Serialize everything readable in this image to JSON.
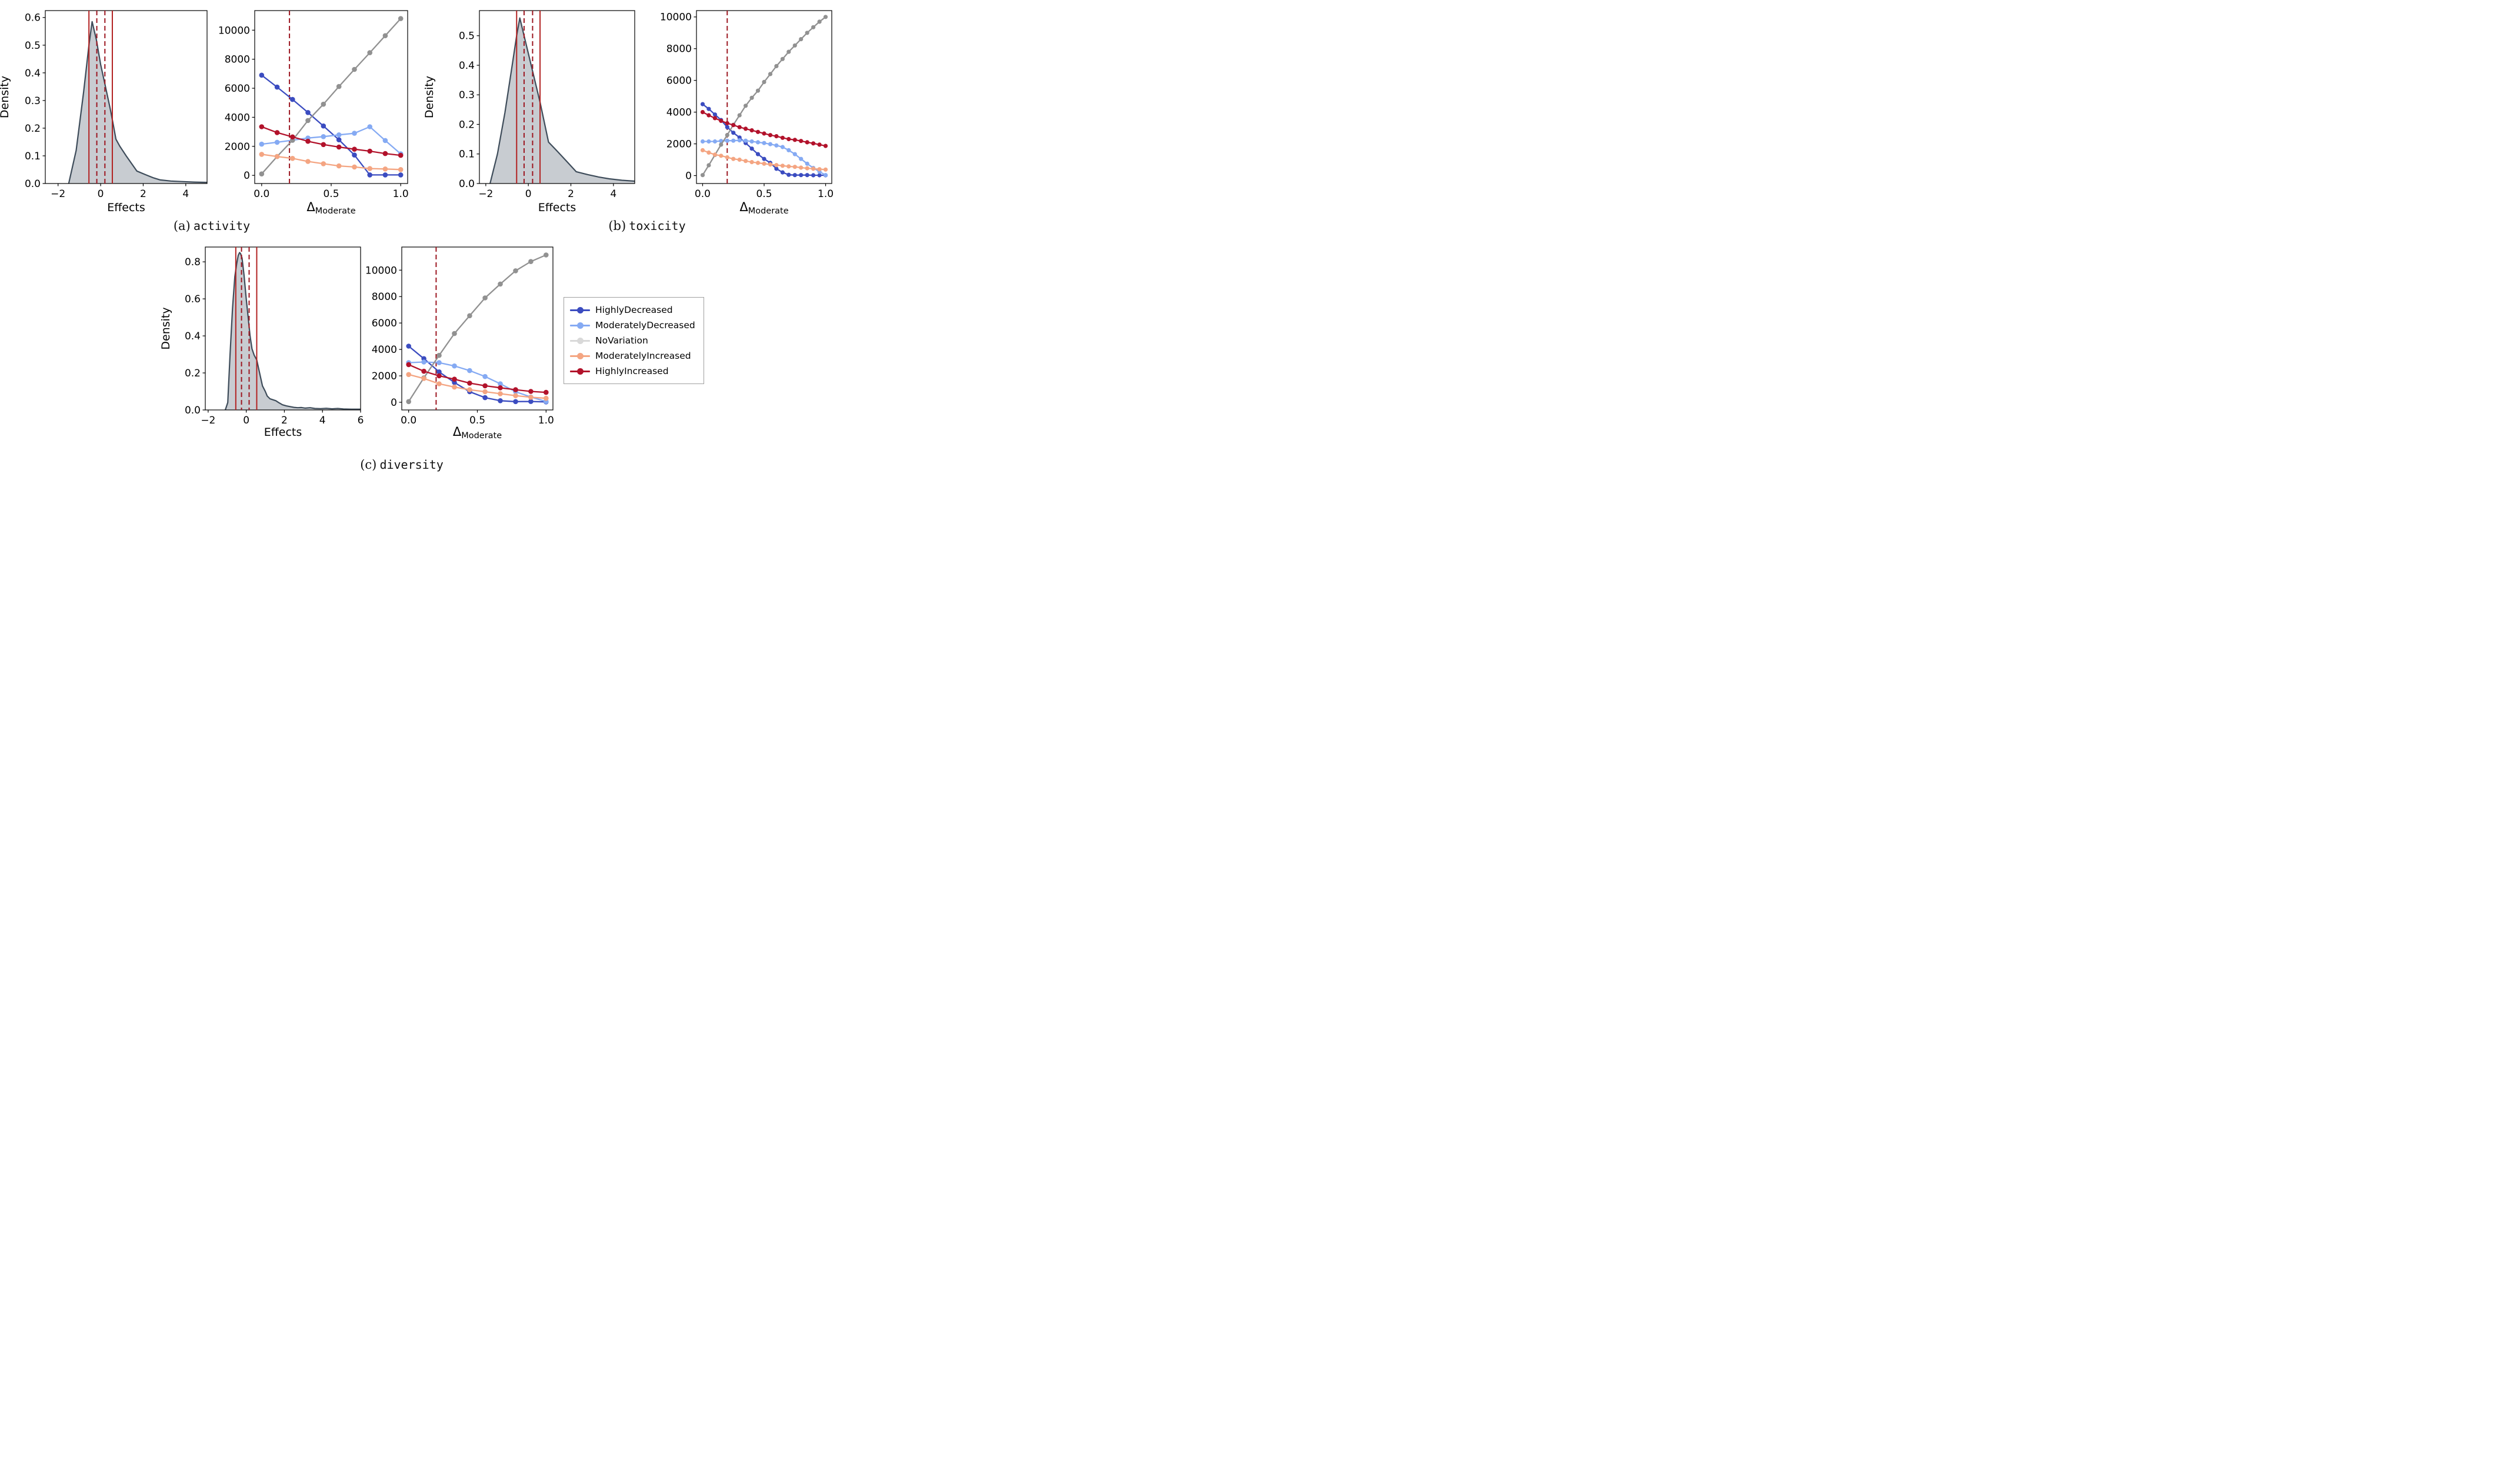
{
  "colors": {
    "background": "#ffffff",
    "density_fill": "#c8ccd1",
    "density_line": "#3e4c5a",
    "vline_solid": "#b22222",
    "vline_dashed": "#9c1620",
    "axis": "#000000"
  },
  "captions": [
    {
      "prefix": "(a)",
      "label": "activity"
    },
    {
      "prefix": "(b)",
      "label": "toxicity"
    },
    {
      "prefix": "(c)",
      "label": "diversity"
    }
  ],
  "legend": {
    "items": [
      {
        "label": "HighlyDecreased",
        "color": "#3b4cc0"
      },
      {
        "label": "ModeratelyDecreased",
        "color": "#85aaf3"
      },
      {
        "label": "NoVariation",
        "color": "#d9d9d9"
      },
      {
        "label": "ModeratelyIncreased",
        "color": "#f4a582"
      },
      {
        "label": "HighlyIncreased",
        "color": "#b2122b"
      }
    ]
  },
  "chart_data": [
    {
      "id": "a-density",
      "panel": "activity",
      "type": "area",
      "xlabel": {
        "text": "Effects"
      },
      "ylabel": "Density",
      "xlim": [
        -2.6,
        5.0
      ],
      "ylim": [
        0,
        0.625
      ],
      "xticks": {
        "values": [
          -2,
          0,
          2,
          4
        ],
        "labels": [
          "−2",
          "0",
          "2",
          "4"
        ]
      },
      "yticks": {
        "values": [
          0,
          0.1,
          0.2,
          0.3,
          0.4,
          0.5,
          0.6
        ],
        "labels": [
          "0.0",
          "0.1",
          "0.2",
          "0.3",
          "0.4",
          "0.5",
          "0.6"
        ]
      },
      "vlines": [
        {
          "x": -0.55,
          "style": "solid"
        },
        {
          "x": -0.18,
          "style": "dashed"
        },
        {
          "x": 0.2,
          "style": "dashed"
        },
        {
          "x": 0.55,
          "style": "solid"
        }
      ],
      "area": {
        "x": [
          -1.5,
          -1.15,
          -0.8,
          -0.55,
          -0.4,
          -0.2,
          0.0,
          0.2,
          0.45,
          0.6,
          0.72,
          0.9,
          1.2,
          1.7,
          2.1,
          2.5,
          2.8,
          3.3,
          3.8,
          4.4,
          5.0
        ],
        "y": [
          0,
          0.12,
          0.33,
          0.5,
          0.585,
          0.52,
          0.43,
          0.36,
          0.27,
          0.21,
          0.16,
          0.135,
          0.1,
          0.045,
          0.032,
          0.02,
          0.013,
          0.009,
          0.007,
          0.005,
          0.004
        ]
      }
    },
    {
      "id": "a-lines",
      "panel": "activity",
      "type": "line",
      "xlabel": {
        "symbol": "Δ",
        "subscript": "Moderate"
      },
      "ylabel": null,
      "xlim": [
        -0.05,
        1.05
      ],
      "ylim": [
        -560,
        11350
      ],
      "xticks": {
        "values": [
          0.0,
          0.5,
          1.0
        ],
        "labels": [
          "0.0",
          "0.5",
          "1.0"
        ]
      },
      "yticks": {
        "values": [
          0,
          2000,
          4000,
          6000,
          8000,
          10000
        ],
        "labels": [
          "0",
          "2000",
          "4000",
          "6000",
          "8000",
          "10000"
        ]
      },
      "vlines": [
        {
          "x": 0.2,
          "style": "dashed"
        }
      ],
      "x": [
        0,
        0.111,
        0.222,
        0.333,
        0.444,
        0.556,
        0.667,
        0.778,
        0.889,
        1.0
      ],
      "series": [
        {
          "name": "HighlyDecreased",
          "color": "#3b4cc0",
          "values": [
            6900,
            6080,
            5230,
            4330,
            3400,
            2450,
            1400,
            30,
            30,
            30
          ]
        },
        {
          "name": "ModeratelyDecreased",
          "color": "#85aaf3",
          "values": [
            2150,
            2280,
            2420,
            2570,
            2670,
            2790,
            2900,
            3350,
            2400,
            1480
          ]
        },
        {
          "name": "NoVariation",
          "color": "#919191",
          "values": [
            100,
            1300,
            2420,
            3780,
            4900,
            6120,
            7300,
            8450,
            9620,
            10800
          ]
        },
        {
          "name": "ModeratelyIncreased",
          "color": "#f4a582",
          "values": [
            1450,
            1300,
            1170,
            960,
            800,
            650,
            580,
            470,
            440,
            400
          ]
        },
        {
          "name": "HighlyIncreased",
          "color": "#b2122b",
          "values": [
            3350,
            2950,
            2650,
            2350,
            2120,
            1950,
            1800,
            1670,
            1500,
            1380
          ]
        }
      ]
    },
    {
      "id": "b-density",
      "panel": "toxicity",
      "type": "area",
      "xlabel": {
        "text": "Effects"
      },
      "ylabel": "Density",
      "xlim": [
        -2.3,
        5.0
      ],
      "ylim": [
        0,
        0.585
      ],
      "xticks": {
        "values": [
          -2,
          0,
          2,
          4
        ],
        "labels": [
          "−2",
          "0",
          "2",
          "4"
        ]
      },
      "yticks": {
        "values": [
          0,
          0.1,
          0.2,
          0.3,
          0.4,
          0.5
        ],
        "labels": [
          "0.0",
          "0.1",
          "0.2",
          "0.3",
          "0.4",
          "0.5"
        ]
      },
      "vlines": [
        {
          "x": -0.55,
          "style": "solid"
        },
        {
          "x": -0.2,
          "style": "dashed"
        },
        {
          "x": 0.2,
          "style": "dashed"
        },
        {
          "x": 0.55,
          "style": "solid"
        }
      ],
      "area": {
        "x": [
          -1.8,
          -1.45,
          -1.1,
          -0.8,
          -0.55,
          -0.4,
          -0.2,
          0.0,
          0.2,
          0.55,
          0.95,
          1.35,
          1.8,
          2.25,
          2.8,
          3.3,
          3.8,
          4.4,
          5.0
        ],
        "y": [
          0,
          0.1,
          0.24,
          0.38,
          0.5,
          0.56,
          0.5,
          0.44,
          0.38,
          0.275,
          0.14,
          0.11,
          0.075,
          0.04,
          0.03,
          0.022,
          0.016,
          0.011,
          0.008
        ]
      }
    },
    {
      "id": "b-lines",
      "panel": "toxicity",
      "type": "line",
      "xlabel": {
        "symbol": "Δ",
        "subscript": "Moderate"
      },
      "ylabel": null,
      "xlim": [
        -0.05,
        1.05
      ],
      "ylim": [
        -500,
        10400
      ],
      "xticks": {
        "values": [
          0.0,
          0.5,
          1.0
        ],
        "labels": [
          "0.0",
          "0.5",
          "1.0"
        ]
      },
      "yticks": {
        "values": [
          0,
          2000,
          4000,
          6000,
          8000,
          10000
        ],
        "labels": [
          "0",
          "2000",
          "4000",
          "6000",
          "8000",
          "10000"
        ]
      },
      "vlines": [
        {
          "x": 0.2,
          "style": "dashed"
        }
      ],
      "x": [
        0,
        0.05,
        0.1,
        0.15,
        0.2,
        0.25,
        0.3,
        0.35,
        0.4,
        0.45,
        0.5,
        0.55,
        0.6,
        0.65,
        0.7,
        0.75,
        0.8,
        0.85,
        0.9,
        0.95,
        1.0
      ],
      "series": [
        {
          "name": "HighlyDecreased",
          "color": "#3b4cc0",
          "values": [
            4500,
            4200,
            3850,
            3500,
            3050,
            2700,
            2400,
            2050,
            1700,
            1350,
            1050,
            800,
            430,
            200,
            50,
            30,
            30,
            30,
            20,
            20,
            20
          ]
        },
        {
          "name": "ModeratelyDecreased",
          "color": "#85aaf3",
          "values": [
            2150,
            2150,
            2150,
            2180,
            2200,
            2200,
            2220,
            2200,
            2150,
            2100,
            2050,
            1980,
            1900,
            1800,
            1600,
            1350,
            1050,
            750,
            480,
            250,
            30
          ]
        },
        {
          "name": "NoVariation",
          "color": "#919191",
          "values": [
            30,
            650,
            1300,
            1950,
            2550,
            3200,
            3800,
            4400,
            4900,
            5350,
            5900,
            6400,
            6900,
            7350,
            7800,
            8200,
            8600,
            9000,
            9350,
            9700,
            10000
          ]
        },
        {
          "name": "ModeratelyIncreased",
          "color": "#f4a582",
          "values": [
            1600,
            1450,
            1320,
            1250,
            1150,
            1050,
            1000,
            920,
            850,
            800,
            750,
            700,
            660,
            620,
            580,
            550,
            500,
            460,
            430,
            400,
            380
          ]
        },
        {
          "name": "HighlyIncreased",
          "color": "#b2122b",
          "values": [
            4000,
            3800,
            3620,
            3450,
            3300,
            3180,
            3050,
            2950,
            2850,
            2750,
            2650,
            2550,
            2480,
            2380,
            2300,
            2250,
            2180,
            2100,
            2030,
            1950,
            1870
          ]
        }
      ]
    },
    {
      "id": "c-density",
      "panel": "diversity",
      "type": "area",
      "xlabel": {
        "text": "Effects"
      },
      "ylabel": "Density",
      "xlim": [
        -2.15,
        6.0
      ],
      "ylim": [
        0,
        0.88
      ],
      "xticks": {
        "values": [
          -2,
          0,
          2,
          4,
          6
        ],
        "labels": [
          "−2",
          "0",
          "2",
          "4",
          "6"
        ]
      },
      "yticks": {
        "values": [
          0,
          0.2,
          0.4,
          0.6,
          0.8
        ],
        "labels": [
          "0.0",
          "0.2",
          "0.4",
          "0.6",
          "0.8"
        ]
      },
      "vlines": [
        {
          "x": -0.55,
          "style": "solid"
        },
        {
          "x": -0.25,
          "style": "dashed"
        },
        {
          "x": 0.15,
          "style": "dashed"
        },
        {
          "x": 0.55,
          "style": "solid"
        }
      ],
      "area": {
        "x": [
          -1.1,
          -0.97,
          -0.85,
          -0.72,
          -0.6,
          -0.5,
          -0.42,
          -0.35,
          -0.3,
          -0.22,
          -0.12,
          0.0,
          0.1,
          0.2,
          0.3,
          0.42,
          0.55,
          0.7,
          0.85,
          1.0,
          1.1,
          1.25,
          1.4,
          1.55,
          1.7,
          1.9,
          2.1,
          2.3,
          2.5,
          2.7,
          2.9,
          3.1,
          3.35,
          3.6,
          3.9,
          4.2,
          4.5,
          4.8,
          5.1,
          5.5,
          6.0
        ],
        "y": [
          0,
          0.04,
          0.3,
          0.55,
          0.72,
          0.79,
          0.835,
          0.85,
          0.845,
          0.82,
          0.73,
          0.6,
          0.5,
          0.4,
          0.33,
          0.295,
          0.27,
          0.2,
          0.13,
          0.1,
          0.075,
          0.06,
          0.055,
          0.05,
          0.04,
          0.028,
          0.022,
          0.018,
          0.014,
          0.012,
          0.013,
          0.01,
          0.012,
          0.008,
          0.007,
          0.009,
          0.006,
          0.008,
          0.005,
          0.004,
          0.004
        ]
      }
    },
    {
      "id": "c-lines",
      "panel": "diversity",
      "type": "line",
      "xlabel": {
        "symbol": "Δ",
        "subscript": "Moderate"
      },
      "ylabel": null,
      "xlim": [
        -0.05,
        1.05
      ],
      "ylim": [
        -580,
        11750
      ],
      "xticks": {
        "values": [
          0.0,
          0.5,
          1.0
        ],
        "labels": [
          "0.0",
          "0.5",
          "1.0"
        ]
      },
      "yticks": {
        "values": [
          0,
          2000,
          4000,
          6000,
          8000,
          10000
        ],
        "labels": [
          "0",
          "2000",
          "4000",
          "6000",
          "8000",
          "10000"
        ]
      },
      "vlines": [
        {
          "x": 0.2,
          "style": "dashed"
        }
      ],
      "x": [
        0,
        0.111,
        0.222,
        0.333,
        0.444,
        0.556,
        0.667,
        0.778,
        0.889,
        1.0
      ],
      "series": [
        {
          "name": "HighlyDecreased",
          "color": "#3b4cc0",
          "values": [
            4250,
            3300,
            2300,
            1500,
            800,
            350,
            120,
            50,
            60,
            30
          ]
        },
        {
          "name": "ModeratelyDecreased",
          "color": "#85aaf3",
          "values": [
            3000,
            3050,
            3000,
            2750,
            2400,
            1950,
            1400,
            800,
            400,
            60
          ]
        },
        {
          "name": "NoVariation",
          "color": "#919191",
          "values": [
            50,
            1850,
            3550,
            5200,
            6550,
            7900,
            8950,
            9950,
            10650,
            11150
          ]
        },
        {
          "name": "ModeratelyIncreased",
          "color": "#f4a582",
          "values": [
            2100,
            1800,
            1400,
            1150,
            950,
            800,
            650,
            500,
            380,
            300
          ]
        },
        {
          "name": "HighlyIncreased",
          "color": "#b2122b",
          "values": [
            2850,
            2350,
            2000,
            1750,
            1450,
            1250,
            1100,
            950,
            820,
            750
          ]
        }
      ]
    }
  ]
}
